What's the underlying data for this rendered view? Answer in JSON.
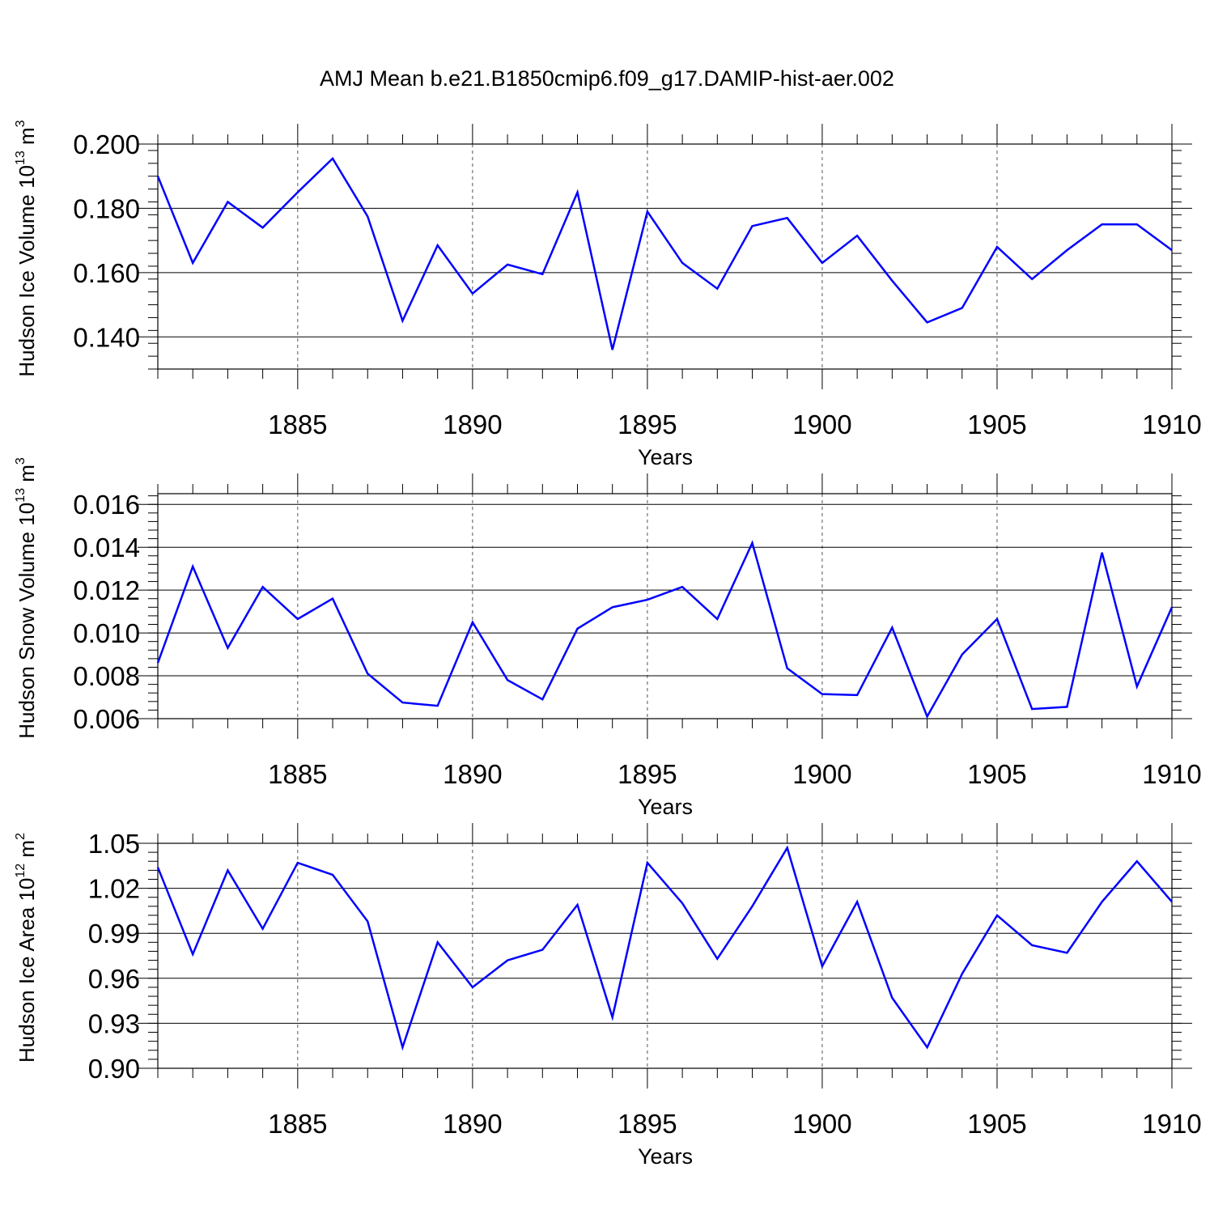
{
  "title": "AMJ Mean b.e21.B1850cmip6.f09_g17.DAMIP-hist-aer.002",
  "line_color": "#0000ff",
  "chart_data": [
    {
      "type": "line",
      "ylabel": "Hudson Ice Volume 10",
      "ylabel_exp": "13",
      "ylabel_unit": " m",
      "ylabel_unit_exp": "3",
      "xlabel": "Years",
      "xlim": [
        1881,
        1910
      ],
      "ylim": [
        0.13,
        0.2
      ],
      "xticks": [
        "1885",
        "1890",
        "1895",
        "1900",
        "1905",
        "1910"
      ],
      "yticks": [
        "0.140",
        "0.160",
        "0.180",
        "0.200"
      ],
      "x": [
        1881,
        1882,
        1883,
        1884,
        1885,
        1886,
        1887,
        1888,
        1889,
        1890,
        1891,
        1892,
        1893,
        1894,
        1895,
        1896,
        1897,
        1898,
        1899,
        1900,
        1901,
        1902,
        1903,
        1904,
        1905,
        1906,
        1907,
        1908,
        1909,
        1910
      ],
      "values": [
        0.19,
        0.163,
        0.182,
        0.174,
        0.185,
        0.1955,
        0.1775,
        0.145,
        0.1685,
        0.1535,
        0.1625,
        0.1595,
        0.185,
        0.136,
        0.179,
        0.163,
        0.155,
        0.1745,
        0.177,
        0.163,
        0.1715,
        0.1575,
        0.1445,
        0.149,
        0.168,
        0.158,
        0.167,
        0.175,
        0.175,
        0.167
      ]
    },
    {
      "type": "line",
      "ylabel": "Hudson Snow Volume 10",
      "ylabel_exp": "13",
      "ylabel_unit": " m",
      "ylabel_unit_exp": "3",
      "xlabel": "Years",
      "xlim": [
        1881,
        1910
      ],
      "ylim": [
        0.006,
        0.0165
      ],
      "xticks": [
        "1885",
        "1890",
        "1895",
        "1900",
        "1905",
        "1910"
      ],
      "yticks": [
        "0.006",
        "0.008",
        "0.010",
        "0.012",
        "0.014",
        "0.016"
      ],
      "x": [
        1881,
        1882,
        1883,
        1884,
        1885,
        1886,
        1887,
        1888,
        1889,
        1890,
        1891,
        1892,
        1893,
        1894,
        1895,
        1896,
        1897,
        1898,
        1899,
        1900,
        1901,
        1902,
        1903,
        1904,
        1905,
        1906,
        1907,
        1908,
        1909,
        1910
      ],
      "values": [
        0.0086,
        0.0131,
        0.0093,
        0.01215,
        0.01065,
        0.0116,
        0.0081,
        0.00675,
        0.0066,
        0.0105,
        0.0078,
        0.0069,
        0.0102,
        0.0112,
        0.01155,
        0.01215,
        0.01065,
        0.0142,
        0.00835,
        0.00715,
        0.0071,
        0.01025,
        0.0061,
        0.009,
        0.01065,
        0.00645,
        0.00655,
        0.01375,
        0.0075,
        0.0112
      ]
    },
    {
      "type": "line",
      "ylabel": "Hudson Ice Area 10",
      "ylabel_exp": "12",
      "ylabel_unit": " m",
      "ylabel_unit_exp": "2",
      "xlabel": "Years",
      "xlim": [
        1881,
        1910
      ],
      "ylim": [
        0.9,
        1.05
      ],
      "xticks": [
        "1885",
        "1890",
        "1895",
        "1900",
        "1905",
        "1910"
      ],
      "yticks": [
        "0.90",
        "0.93",
        "0.96",
        "0.99",
        "1.02",
        "1.05"
      ],
      "x": [
        1881,
        1882,
        1883,
        1884,
        1885,
        1886,
        1887,
        1888,
        1889,
        1890,
        1891,
        1892,
        1893,
        1894,
        1895,
        1896,
        1897,
        1898,
        1899,
        1900,
        1901,
        1902,
        1903,
        1904,
        1905,
        1906,
        1907,
        1908,
        1909,
        1910
      ],
      "values": [
        1.034,
        0.976,
        1.032,
        0.993,
        1.037,
        1.029,
        0.998,
        0.914,
        0.984,
        0.954,
        0.972,
        0.979,
        1.009,
        0.934,
        1.037,
        1.01,
        0.973,
        1.008,
        1.047,
        0.968,
        1.011,
        0.947,
        0.914,
        0.963,
        1.002,
        0.982,
        0.977,
        1.011,
        1.038,
        1.011
      ]
    }
  ]
}
